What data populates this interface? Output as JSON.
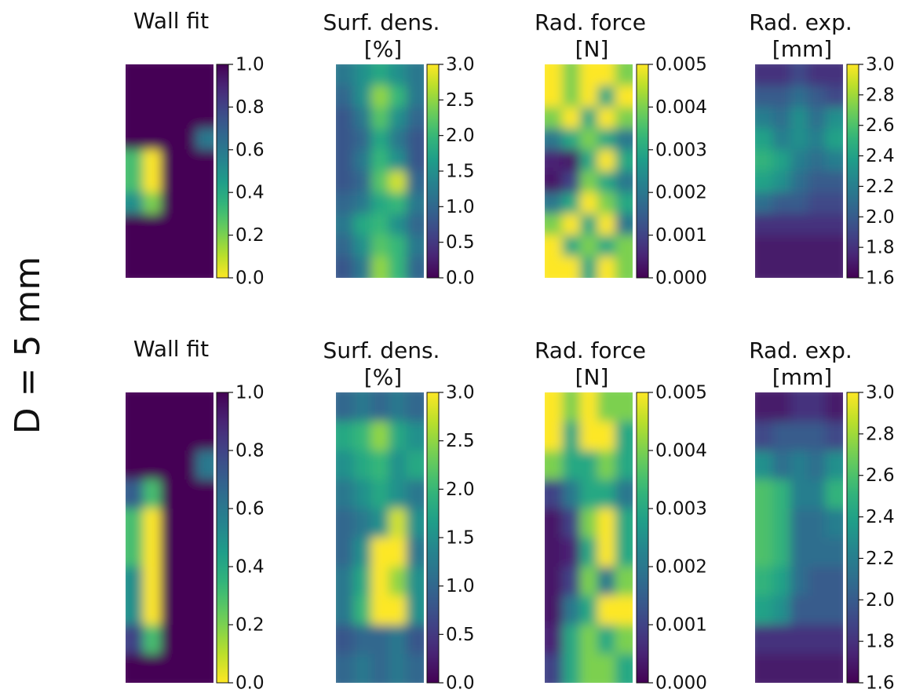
{
  "ylabel": "D = 5 mm",
  "chart_data": [
    {
      "type": "heatmap",
      "title": "Wall fit",
      "cmap": "viridis_r",
      "zlim": [
        0,
        1
      ],
      "zticks": [
        {
          "value": 0,
          "label": "0.0"
        },
        0.2,
        0.4,
        0.6,
        0.8,
        {
          "value": 1,
          "label": "1.0"
        }
      ],
      "values": [
        [
          1,
          1,
          1,
          1,
          1
        ],
        [
          1,
          1,
          1,
          1,
          1
        ],
        [
          1,
          1,
          1,
          1,
          1
        ],
        [
          1,
          1,
          1,
          1,
          0.6
        ],
        [
          0.3,
          0,
          1,
          1,
          1
        ],
        [
          0.3,
          0,
          1,
          1,
          1
        ],
        [
          0.5,
          0.2,
          1,
          1,
          1
        ],
        [
          1,
          1,
          1,
          1,
          1
        ],
        [
          1,
          1,
          1,
          1,
          1
        ],
        [
          1,
          1,
          1,
          1,
          1
        ]
      ]
    },
    {
      "type": "heatmap",
      "title": "Surf. dens.",
      "subtitle": "[%]",
      "cmap": "viridis",
      "zlim": [
        0,
        3
      ],
      "zticks": [
        {
          "value": 0,
          "label": "0.0"
        },
        0.5,
        {
          "value": 1,
          "label": "1.0"
        },
        1.5,
        {
          "value": 2,
          "label": "2.0"
        },
        2.5,
        {
          "value": 3,
          "label": "3.0"
        }
      ],
      "values": [
        [
          1.2,
          1.5,
          1.8,
          1.5,
          1.2
        ],
        [
          1.0,
          1.5,
          2.5,
          2.0,
          1.2
        ],
        [
          0.8,
          1.2,
          2.2,
          1.5,
          1.0
        ],
        [
          0.8,
          1.0,
          1.8,
          1.2,
          0.8
        ],
        [
          0.8,
          1.2,
          2.0,
          1.5,
          0.8
        ],
        [
          0.8,
          1.0,
          2.2,
          2.8,
          1.0
        ],
        [
          1.0,
          1.2,
          1.8,
          2.0,
          1.2
        ],
        [
          1.2,
          1.8,
          2.0,
          1.5,
          1.0
        ],
        [
          1.0,
          1.5,
          2.2,
          2.0,
          1.2
        ],
        [
          0.8,
          1.2,
          2.5,
          2.0,
          1.0
        ]
      ]
    },
    {
      "type": "heatmap",
      "title": "Rad. force",
      "subtitle": "[N]",
      "cmap": "viridis",
      "zlim": [
        0,
        0.005
      ],
      "zticks": [
        {
          "value": 0,
          "label": "0.000"
        },
        0.001,
        0.002,
        0.003,
        0.004,
        0.005
      ],
      "values": [
        [
          0.005,
          0.004,
          0.005,
          0.005,
          0.004
        ],
        [
          0.005,
          0.004,
          0.005,
          0.003,
          0.005
        ],
        [
          0.004,
          0.005,
          0.003,
          0.005,
          0.004
        ],
        [
          0.002,
          0.003,
          0.004,
          0.003,
          0.002
        ],
        [
          0.0005,
          0.0003,
          0.003,
          0.005,
          0.003
        ],
        [
          0.0003,
          0.001,
          0.004,
          0.003,
          0.002
        ],
        [
          0.002,
          0.003,
          0.005,
          0.004,
          0.003
        ],
        [
          0.004,
          0.005,
          0.003,
          0.005,
          0.002
        ],
        [
          0.005,
          0.003,
          0.004,
          0.003,
          0.004
        ],
        [
          0.005,
          0.005,
          0.003,
          0.005,
          0.004
        ]
      ]
    },
    {
      "type": "heatmap",
      "title": "Rad. exp.",
      "subtitle": "[mm]",
      "cmap": "viridis",
      "zlim": [
        1.6,
        3.0
      ],
      "zticks": [
        1.6,
        1.8,
        {
          "value": 2,
          "label": "2.0"
        },
        2.2,
        2.4,
        2.6,
        2.8,
        {
          "value": 3,
          "label": "3.0"
        }
      ],
      "values": [
        [
          1.8,
          1.8,
          1.9,
          1.8,
          1.8
        ],
        [
          2.0,
          2.0,
          2.1,
          2.0,
          1.9
        ],
        [
          2.2,
          2.1,
          2.3,
          2.1,
          2.3
        ],
        [
          2.4,
          2.2,
          2.3,
          2.2,
          2.4
        ],
        [
          2.5,
          2.4,
          2.2,
          2.1,
          2.2
        ],
        [
          2.4,
          2.3,
          2.1,
          2.0,
          2.0
        ],
        [
          2.1,
          2.0,
          2.0,
          1.9,
          1.9
        ],
        [
          1.8,
          1.8,
          1.8,
          1.8,
          1.8
        ],
        [
          1.7,
          1.7,
          1.7,
          1.7,
          1.7
        ],
        [
          1.7,
          1.7,
          1.7,
          1.7,
          1.7
        ]
      ]
    },
    {
      "type": "heatmap",
      "title": "Wall fit",
      "cmap": "viridis_r",
      "zlim": [
        0,
        1
      ],
      "zticks": [
        {
          "value": 0,
          "label": "0.0"
        },
        0.2,
        0.4,
        0.6,
        0.8,
        {
          "value": 1,
          "label": "1.0"
        }
      ],
      "values": [
        [
          1,
          1,
          1,
          1,
          1
        ],
        [
          1,
          1,
          1,
          1,
          1
        ],
        [
          1,
          1,
          1,
          1,
          0.6
        ],
        [
          0.7,
          0.3,
          1,
          1,
          1
        ],
        [
          0.3,
          0,
          1,
          1,
          1
        ],
        [
          0.3,
          0,
          1,
          1,
          1
        ],
        [
          0.5,
          0,
          1,
          1,
          1
        ],
        [
          0.5,
          0,
          1,
          1,
          1
        ],
        [
          0.8,
          0.3,
          1,
          1,
          1
        ],
        [
          1,
          1,
          1,
          1,
          1
        ]
      ]
    },
    {
      "type": "heatmap",
      "title": "Surf. dens.",
      "subtitle": "[%]",
      "cmap": "viridis",
      "zlim": [
        0,
        3
      ],
      "zticks": [
        {
          "value": 0,
          "label": "0.0"
        },
        0.5,
        {
          "value": 1,
          "label": "1.0"
        },
        1.5,
        {
          "value": 2,
          "label": "2.0"
        },
        2.5,
        {
          "value": 3,
          "label": "3.0"
        }
      ],
      "values": [
        [
          1.0,
          1.2,
          1.0,
          1.2,
          1.0
        ],
        [
          1.8,
          2.0,
          2.5,
          1.8,
          1.5
        ],
        [
          1.5,
          1.8,
          2.0,
          1.5,
          1.8
        ],
        [
          1.2,
          1.5,
          1.8,
          1.5,
          1.2
        ],
        [
          1.0,
          1.2,
          1.5,
          2.8,
          1.5
        ],
        [
          1.0,
          1.5,
          3.0,
          3.0,
          1.2
        ],
        [
          1.2,
          1.8,
          3.0,
          2.5,
          1.5
        ],
        [
          1.2,
          2.0,
          3.0,
          3.0,
          1.5
        ],
        [
          0.8,
          1.0,
          1.0,
          1.2,
          0.8
        ],
        [
          1.0,
          1.2,
          1.0,
          1.2,
          1.0
        ]
      ]
    },
    {
      "type": "heatmap",
      "title": "Rad. force",
      "subtitle": "[N]",
      "cmap": "viridis",
      "zlim": [
        0,
        0.005
      ],
      "zticks": [
        {
          "value": 0,
          "label": "0.000"
        },
        0.001,
        0.002,
        0.003,
        0.004,
        0.005
      ],
      "values": [
        [
          0.005,
          0.004,
          0.005,
          0.004,
          0.004
        ],
        [
          0.005,
          0.003,
          0.005,
          0.005,
          0.003
        ],
        [
          0.004,
          0.003,
          0.003,
          0.004,
          0.003
        ],
        [
          0.001,
          0.002,
          0.003,
          0.003,
          0.002
        ],
        [
          0.0003,
          0.001,
          0.004,
          0.005,
          0.003
        ],
        [
          0.0003,
          0.0005,
          0.003,
          0.005,
          0.003
        ],
        [
          0.0003,
          0.001,
          0.004,
          0.002,
          0.004
        ],
        [
          0.0003,
          0.002,
          0.003,
          0.005,
          0.005
        ],
        [
          0.0005,
          0.003,
          0.004,
          0.003,
          0.004
        ],
        [
          0.001,
          0.003,
          0.004,
          0.004,
          0.003
        ]
      ]
    },
    {
      "type": "heatmap",
      "title": "Rad. exp.",
      "subtitle": "[mm]",
      "cmap": "viridis",
      "zlim": [
        1.6,
        3.0
      ],
      "zticks": [
        1.6,
        1.8,
        {
          "value": 2,
          "label": "2.0"
        },
        2.2,
        2.4,
        2.6,
        2.8,
        {
          "value": 3,
          "label": "3.0"
        }
      ],
      "values": [
        [
          1.7,
          1.7,
          1.8,
          1.8,
          1.7
        ],
        [
          1.9,
          2.0,
          2.0,
          2.0,
          1.9
        ],
        [
          2.3,
          2.1,
          2.2,
          2.1,
          2.3
        ],
        [
          2.6,
          2.5,
          2.2,
          2.2,
          2.5
        ],
        [
          2.6,
          2.5,
          2.1,
          2.1,
          2.2
        ],
        [
          2.6,
          2.5,
          2.1,
          2.1,
          2.1
        ],
        [
          2.5,
          2.4,
          2.1,
          2.0,
          2.0
        ],
        [
          2.4,
          2.3,
          2.0,
          2.0,
          2.0
        ],
        [
          1.8,
          1.8,
          1.8,
          1.8,
          1.8
        ],
        [
          1.7,
          1.7,
          1.7,
          1.7,
          1.7
        ]
      ]
    }
  ]
}
